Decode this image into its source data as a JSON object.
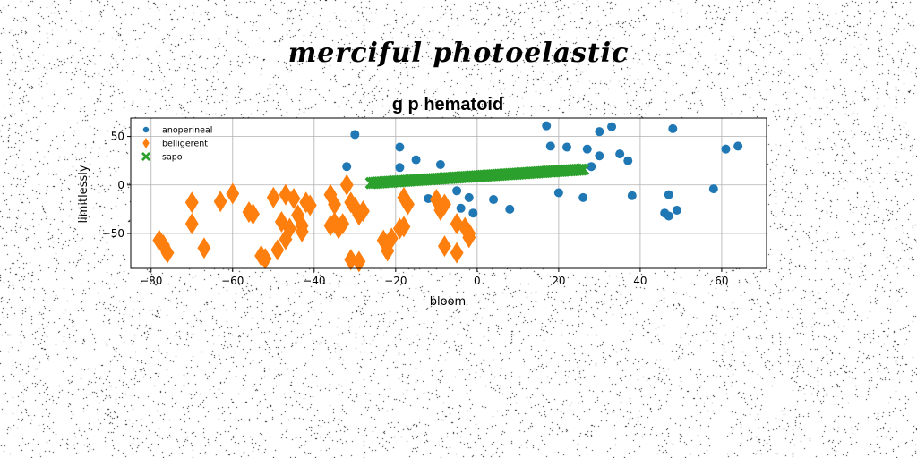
{
  "figure": {
    "title": "merciful photoelastic"
  },
  "chart_data": {
    "type": "scatter",
    "title": "g p hematoid",
    "xlabel": "bloom",
    "ylabel": "limitlessly",
    "xlim": [
      -85,
      71
    ],
    "ylim": [
      -86,
      69
    ],
    "xticks": [
      -80,
      -60,
      -40,
      -20,
      0,
      20,
      40,
      60
    ],
    "xtick_labels": [
      "−80",
      "−60",
      "−40",
      "−20",
      "0",
      "20",
      "40",
      "60"
    ],
    "yticks": [
      -50,
      0,
      50
    ],
    "ytick_labels": [
      "−50",
      "0",
      "50"
    ],
    "grid": true,
    "legend_position": "upper-left",
    "series": [
      {
        "name": "anoperineal",
        "marker": "circle",
        "color": "#1f77b4",
        "points": [
          [
            -30,
            52
          ],
          [
            -32,
            19
          ],
          [
            -19,
            39
          ],
          [
            -19,
            18
          ],
          [
            -15,
            26
          ],
          [
            -12,
            -14
          ],
          [
            -9,
            21
          ],
          [
            -5,
            -6
          ],
          [
            -4,
            -24
          ],
          [
            -2,
            -13
          ],
          [
            -1,
            -29
          ],
          [
            4,
            -15
          ],
          [
            8,
            -25
          ],
          [
            17,
            61
          ],
          [
            18,
            40
          ],
          [
            20,
            -8
          ],
          [
            22,
            39
          ],
          [
            26,
            -13
          ],
          [
            27,
            37
          ],
          [
            28,
            19
          ],
          [
            30,
            55
          ],
          [
            30,
            30
          ],
          [
            33,
            60
          ],
          [
            35,
            32
          ],
          [
            37,
            25
          ],
          [
            38,
            -11
          ],
          [
            46,
            -29
          ],
          [
            47,
            -10
          ],
          [
            47,
            -32
          ],
          [
            48,
            58
          ],
          [
            49,
            -26
          ],
          [
            58,
            -4
          ],
          [
            61,
            37
          ],
          [
            64,
            40
          ]
        ]
      },
      {
        "name": "belligerent",
        "marker": "thin-diamond",
        "color": "#ff7f0e",
        "points": [
          [
            -78,
            -57
          ],
          [
            -77,
            -62
          ],
          [
            -76,
            -70
          ],
          [
            -70,
            -18
          ],
          [
            -70,
            -40
          ],
          [
            -67,
            -65
          ],
          [
            -63,
            -17
          ],
          [
            -60,
            -9
          ],
          [
            -56,
            -28
          ],
          [
            -55,
            -30
          ],
          [
            -53,
            -73
          ],
          [
            -52,
            -76
          ],
          [
            -50,
            -13
          ],
          [
            -49,
            -67
          ],
          [
            -48,
            -38
          ],
          [
            -47,
            -10
          ],
          [
            -47,
            -56
          ],
          [
            -46,
            -45
          ],
          [
            -45,
            -14
          ],
          [
            -44,
            -31
          ],
          [
            -43,
            -42
          ],
          [
            -43,
            -48
          ],
          [
            -42,
            -18
          ],
          [
            -41,
            -21
          ],
          [
            -36,
            -10
          ],
          [
            -36,
            -42
          ],
          [
            -35,
            -20
          ],
          [
            -35,
            -39
          ],
          [
            -34,
            -45
          ],
          [
            -33,
            -40
          ],
          [
            -32,
            0
          ],
          [
            -31,
            -18
          ],
          [
            -31,
            -77
          ],
          [
            -30,
            -23
          ],
          [
            -29,
            -31
          ],
          [
            -29,
            -79
          ],
          [
            -28,
            -27
          ],
          [
            -23,
            -57
          ],
          [
            -22,
            -68
          ],
          [
            -21,
            -55
          ],
          [
            -19,
            -45
          ],
          [
            -18,
            -43
          ],
          [
            -18,
            -13
          ],
          [
            -17,
            -20
          ],
          [
            -10,
            -15
          ],
          [
            -9,
            -26
          ],
          [
            -8,
            -20
          ],
          [
            -8,
            -63
          ],
          [
            -5,
            -40
          ],
          [
            -5,
            -70
          ],
          [
            -3,
            -44
          ],
          [
            -2,
            -50
          ],
          [
            -2,
            -54
          ]
        ]
      },
      {
        "name": "sapo",
        "marker": "x-filled",
        "color": "#2ca02c",
        "x_range": [
          -26,
          26
        ],
        "y_range": [
          2,
          16
        ],
        "count": 100
      }
    ]
  }
}
